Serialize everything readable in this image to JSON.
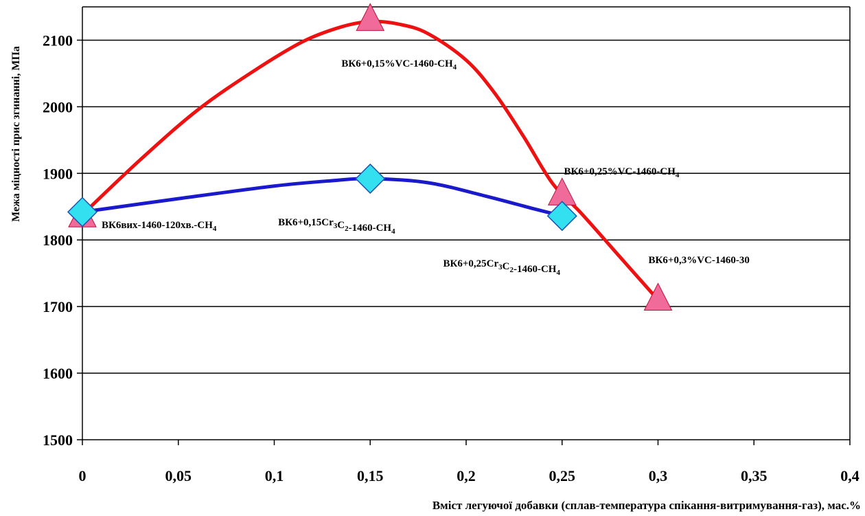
{
  "chart_data": {
    "type": "line",
    "xlabel": "Вміст легуючої добавки  (сплав-температура спікання-витримування-газ), мас.%",
    "ylabel": "Межа міцності прис згинанні, МПа",
    "xlim": [
      0,
      0.4
    ],
    "ylim": [
      1500,
      2150
    ],
    "x_ticks": [
      "0",
      "0,05",
      "0,1",
      "0,15",
      "0,2",
      "0,25",
      "0,3",
      "0,35",
      "0,4"
    ],
    "y_ticks": [
      "1500",
      "1600",
      "1700",
      "1800",
      "1900",
      "2000",
      "2100"
    ],
    "grid": "horizontal",
    "legend": "none",
    "series": [
      {
        "color": "#ee1111",
        "marker": "triangle",
        "marker_color": "#f06a9a",
        "x": [
          0,
          0.15,
          0.25,
          0.3
        ],
        "y": [
          1835,
          2130,
          1868,
          1710
        ],
        "curve": [
          [
            0,
            1838
          ],
          [
            0.03,
            1920
          ],
          [
            0.06,
            1995
          ],
          [
            0.09,
            2055
          ],
          [
            0.115,
            2098
          ],
          [
            0.135,
            2120
          ],
          [
            0.15,
            2128
          ],
          [
            0.165,
            2124
          ],
          [
            0.18,
            2110
          ],
          [
            0.2,
            2070
          ],
          [
            0.215,
            2020
          ],
          [
            0.23,
            1955
          ],
          [
            0.245,
            1885
          ],
          [
            0.26,
            1840
          ],
          [
            0.28,
            1775
          ],
          [
            0.3,
            1710
          ]
        ],
        "labels": [
          {
            "text": "ВК6вих-1460-120хв.-CH",
            "sub": "4",
            "x": 0.01,
            "y": 1818
          },
          {
            "text": "ВК6+0,15%VC-1460-CH",
            "sub": "4",
            "x": 0.135,
            "y": 2060
          },
          {
            "text": "ВК6+0,25%VC-1460-CH",
            "sub": "4",
            "x": 0.251,
            "y": 1898
          },
          {
            "text": "ВК6+0,3%VC-1460-30",
            "sub": "",
            "x": 0.295,
            "y": 1765
          }
        ]
      },
      {
        "color": "#1a1acc",
        "marker": "diamond",
        "marker_color": "#33e0f0",
        "x": [
          0,
          0.15,
          0.25
        ],
        "y": [
          1842,
          1892,
          1836
        ],
        "curve": [
          [
            0,
            1842
          ],
          [
            0.05,
            1862
          ],
          [
            0.1,
            1881
          ],
          [
            0.13,
            1889
          ],
          [
            0.15,
            1892
          ],
          [
            0.18,
            1886
          ],
          [
            0.21,
            1866
          ],
          [
            0.235,
            1847
          ],
          [
            0.25,
            1836
          ]
        ],
        "labels": [
          {
            "text": "ВК6+0,15Cr",
            "sub": "3",
            "mid": "C",
            "sub2": "2",
            "rest": "-1460-CH",
            "sub3": "4",
            "x": 0.102,
            "y": 1822
          },
          {
            "text": "ВК6+0,25Cr",
            "sub": "3",
            "mid": "C",
            "sub2": "2",
            "rest": "-1460-CH",
            "sub3": "4",
            "x": 0.188,
            "y": 1760
          }
        ]
      }
    ]
  }
}
